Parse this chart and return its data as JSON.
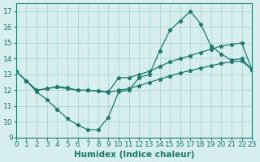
{
  "line1_x": [
    0,
    1,
    2,
    3,
    4,
    5,
    6,
    7,
    8,
    9,
    10,
    11,
    12,
    13,
    14,
    15,
    16,
    17,
    18,
    19,
    20,
    21,
    22,
    23
  ],
  "line1_y": [
    13.2,
    12.6,
    11.9,
    11.4,
    10.8,
    10.2,
    9.8,
    9.5,
    9.5,
    10.3,
    11.9,
    12.0,
    12.8,
    13.0,
    14.5,
    15.8,
    16.4,
    17.0,
    16.2,
    14.8,
    14.3,
    13.9,
    14.0,
    13.3
  ],
  "line2_x": [
    0,
    1,
    2,
    3,
    4,
    5,
    6,
    7,
    8,
    9,
    10,
    11,
    12,
    13,
    14,
    15,
    16,
    17,
    18,
    19,
    20,
    21,
    22,
    23
  ],
  "line2_y": [
    13.2,
    12.6,
    12.0,
    12.1,
    12.2,
    12.1,
    12.0,
    12.0,
    11.95,
    11.9,
    12.8,
    12.8,
    13.0,
    13.2,
    13.5,
    13.8,
    14.0,
    14.2,
    14.4,
    14.6,
    14.8,
    14.9,
    15.0,
    13.3
  ],
  "line3_x": [
    0,
    1,
    2,
    3,
    4,
    5,
    6,
    7,
    8,
    9,
    10,
    11,
    12,
    13,
    14,
    15,
    16,
    17,
    18,
    19,
    20,
    21,
    22,
    23
  ],
  "line3_y": [
    13.2,
    12.6,
    12.0,
    12.1,
    12.25,
    12.15,
    12.0,
    12.0,
    11.95,
    11.85,
    12.0,
    12.1,
    12.3,
    12.5,
    12.7,
    12.9,
    13.1,
    13.25,
    13.4,
    13.55,
    13.7,
    13.8,
    13.85,
    13.3
  ],
  "line_color": "#1a7a6e",
  "bg_color": "#d6eeee",
  "grid_color": "#b0d4d4",
  "xlabel": "Humidex (Indice chaleur)",
  "ylim": [
    9,
    17.5
  ],
  "xlim": [
    0,
    23
  ],
  "yticks": [
    9,
    10,
    11,
    12,
    13,
    14,
    15,
    16,
    17
  ],
  "xticks": [
    0,
    1,
    2,
    3,
    4,
    5,
    6,
    7,
    8,
    9,
    10,
    11,
    12,
    13,
    14,
    15,
    16,
    17,
    18,
    19,
    20,
    21,
    22,
    23
  ],
  "tick_fontsize": 6.5,
  "xlabel_fontsize": 7.5
}
